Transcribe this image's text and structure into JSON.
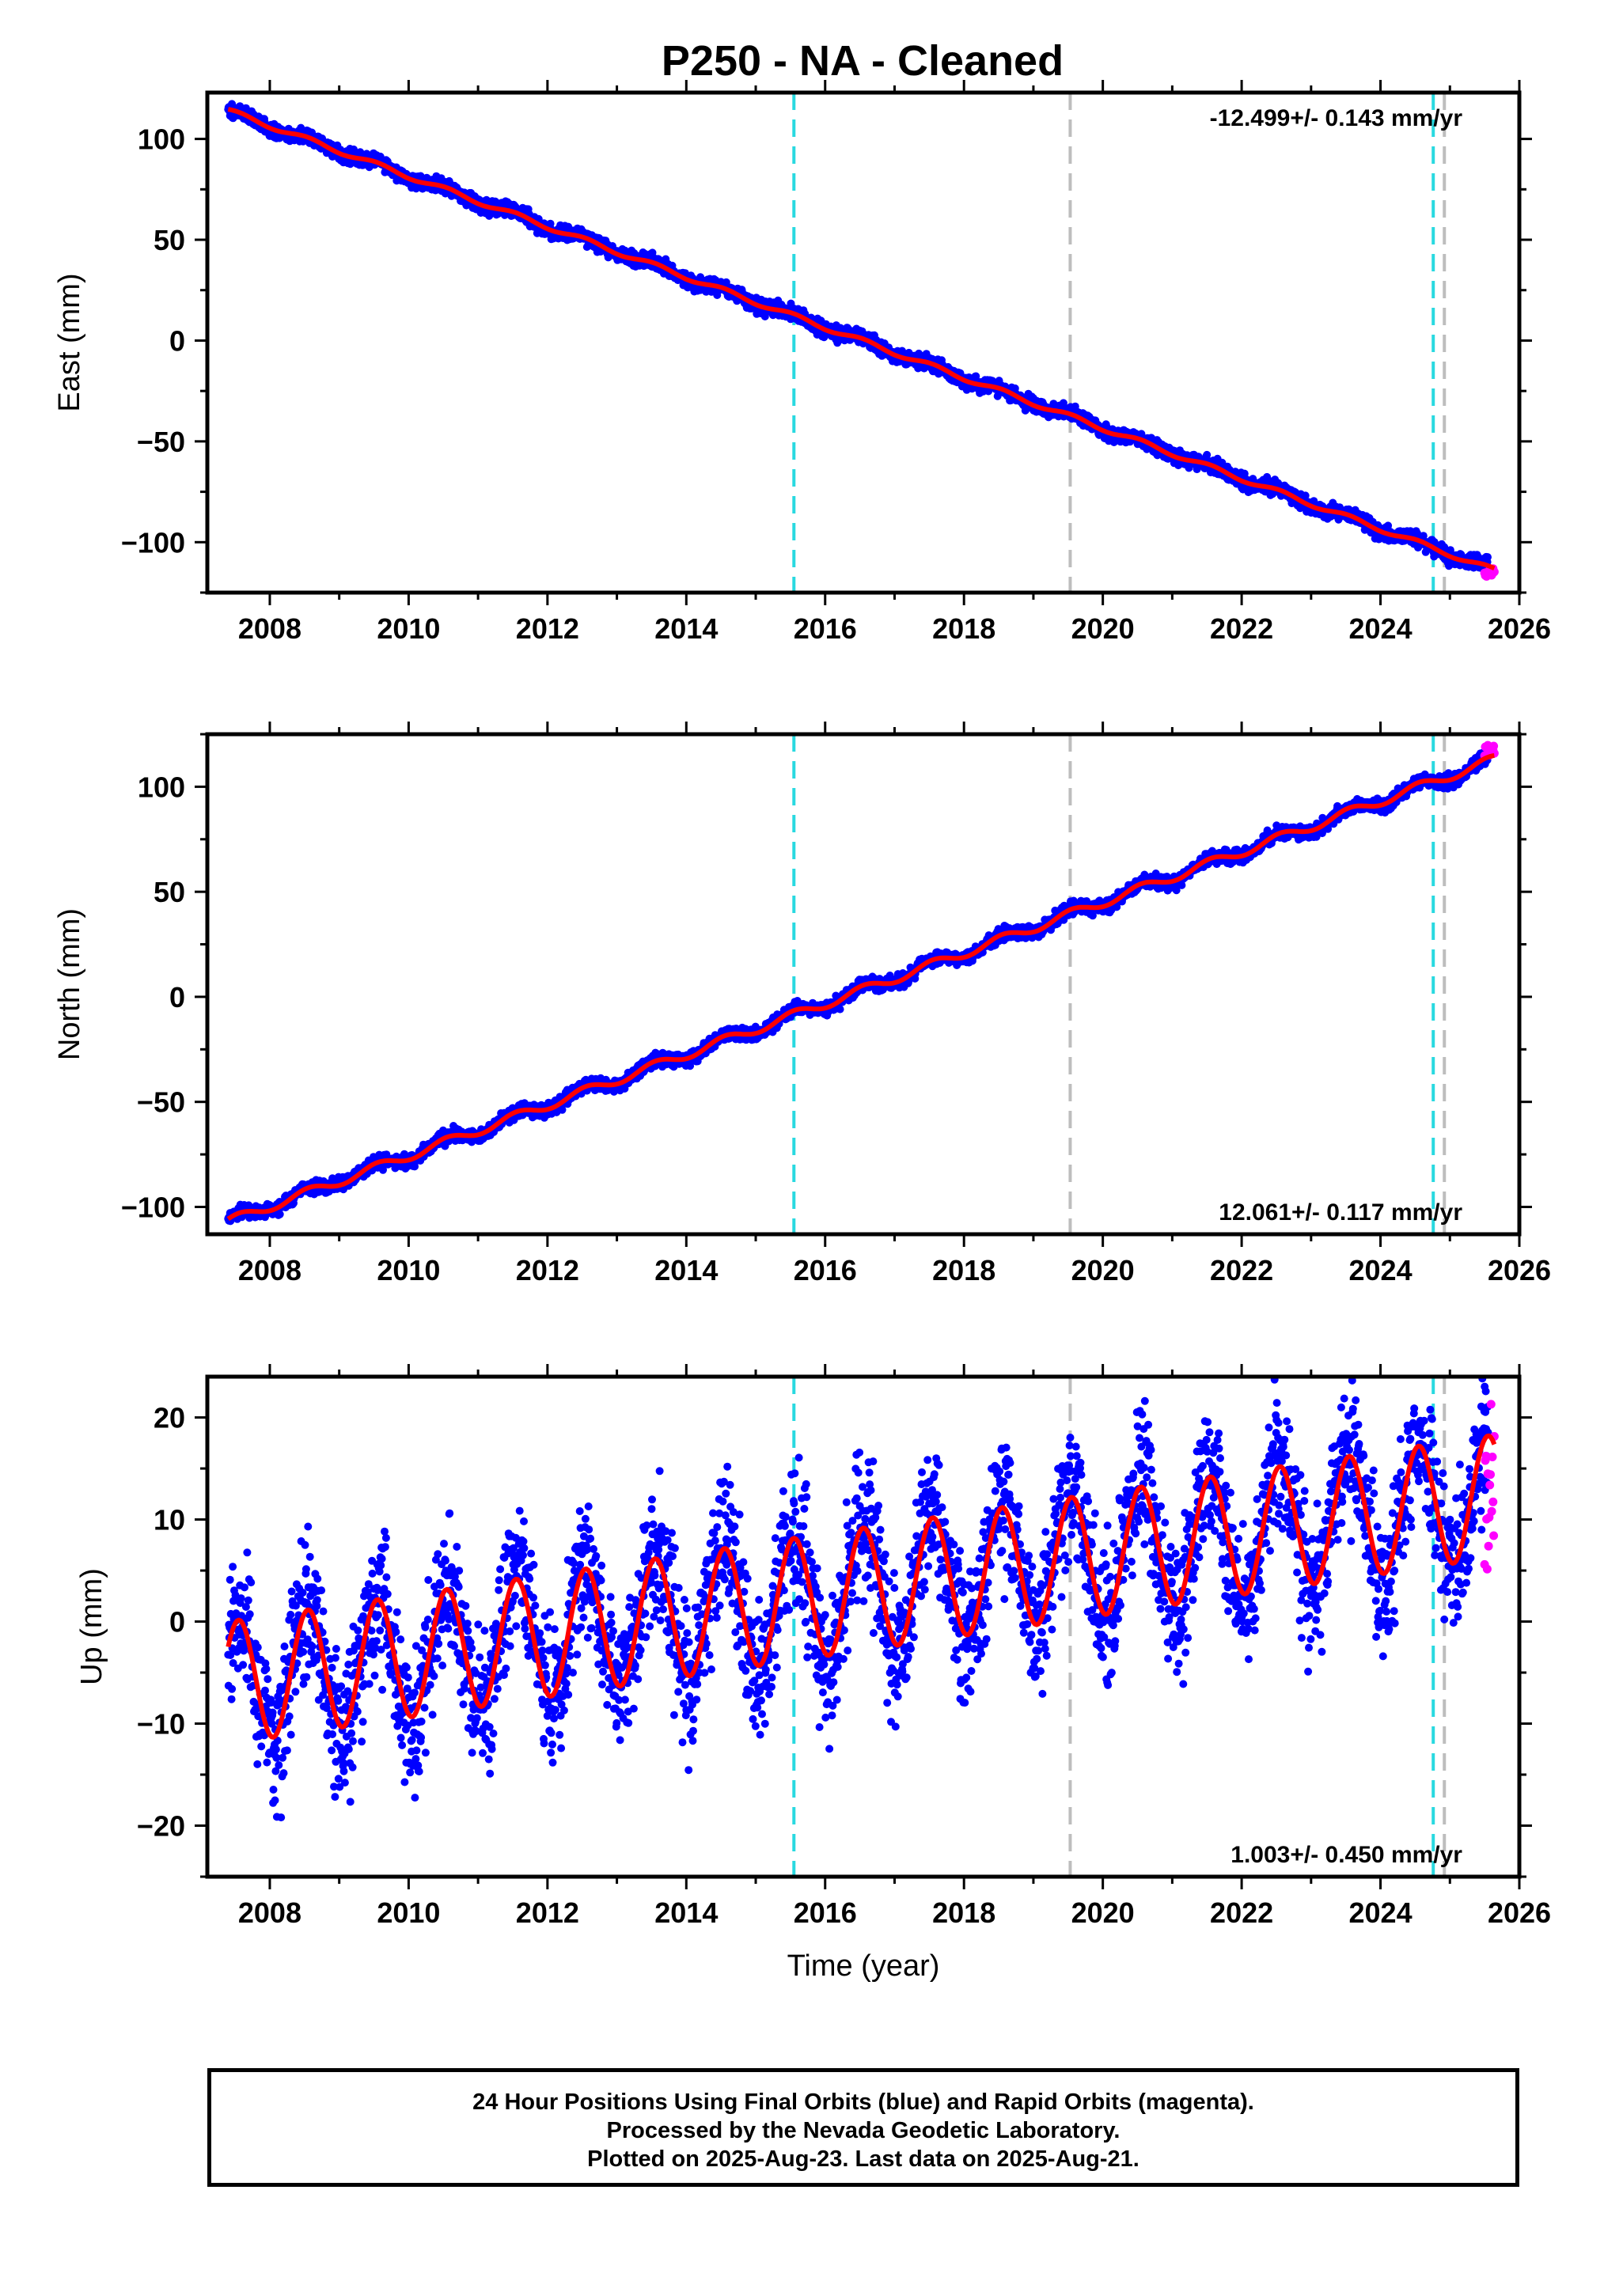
{
  "title": "P250  - NA - Cleaned",
  "chart_data": [
    {
      "type": "scatter",
      "ylabel": "East (mm)",
      "xlabel": "",
      "xlim": [
        2007.1,
        2026.0
      ],
      "ylim": [
        -125,
        123
      ],
      "xticks": [
        "2008",
        "2010",
        "2012",
        "2014",
        "2016",
        "2018",
        "2020",
        "2022",
        "2024",
        "2026"
      ],
      "yticks": [
        "100",
        "50",
        "0",
        "−50",
        "−100"
      ],
      "ytick_values": [
        100,
        50,
        0,
        -50,
        -100
      ],
      "rate_label": "-12.499+/- 0.143 mm/yr",
      "rate_position": "top-right",
      "final_orbits": {
        "start": 2007.4,
        "end": 2025.55,
        "intercept": 114,
        "slope": -12.499,
        "seasonal_amp": 1.5,
        "noise": 2.2
      },
      "rapid_orbits": {
        "start": 2025.5,
        "end": 2025.64,
        "values": [
          -117,
          -113
        ]
      },
      "model_fit": {
        "start": 2007.4,
        "end": 2025.64,
        "intercept": 114,
        "slope": -12.499,
        "seasonal_amp": 1.2
      },
      "vertical_lines": [
        {
          "x": 2015.55,
          "color": "#29d9e0"
        },
        {
          "x": 2019.53,
          "color": "#bdbdbd"
        },
        {
          "x": 2024.76,
          "color": "#29d9e0"
        },
        {
          "x": 2024.92,
          "color": "#bdbdbd"
        }
      ]
    },
    {
      "type": "scatter",
      "ylabel": "North (mm)",
      "xlabel": "",
      "xlim": [
        2007.1,
        2026.0
      ],
      "ylim": [
        -113,
        125
      ],
      "xticks": [
        "2008",
        "2010",
        "2012",
        "2014",
        "2016",
        "2018",
        "2020",
        "2022",
        "2024",
        "2026"
      ],
      "yticks": [
        "100",
        "50",
        "0",
        "−50",
        "−100"
      ],
      "ytick_values": [
        100,
        50,
        0,
        -50,
        -100
      ],
      "rate_label": "12.061+/- 0.117 mm/yr",
      "rate_position": "bottom-right",
      "final_orbits": {
        "start": 2007.4,
        "end": 2025.55,
        "intercept": -107,
        "slope": 12.061,
        "seasonal_amp": 2.5,
        "noise": 2.0
      },
      "rapid_orbits": {
        "start": 2025.5,
        "end": 2025.64,
        "values": [
          114,
          120
        ]
      },
      "model_fit": {
        "start": 2007.4,
        "end": 2025.64,
        "intercept": -107,
        "slope": 12.061,
        "seasonal_amp": 2.2
      },
      "vertical_lines": [
        {
          "x": 2015.55,
          "color": "#29d9e0"
        },
        {
          "x": 2019.53,
          "color": "#bdbdbd"
        },
        {
          "x": 2024.76,
          "color": "#29d9e0"
        },
        {
          "x": 2024.92,
          "color": "#bdbdbd"
        }
      ]
    },
    {
      "type": "scatter",
      "ylabel": "Up (mm)",
      "xlabel": "Time (year)",
      "xlim": [
        2007.1,
        2026.0
      ],
      "ylim": [
        -25,
        24
      ],
      "xticks": [
        "2008",
        "2010",
        "2012",
        "2014",
        "2016",
        "2018",
        "2020",
        "2022",
        "2024",
        "2026"
      ],
      "yticks": [
        "20",
        "10",
        "0",
        "−10",
        "−20"
      ],
      "ytick_values": [
        20,
        10,
        0,
        -10,
        -20
      ],
      "rate_label": "1.003+/- 0.450 mm/yr",
      "rate_position": "bottom-right",
      "final_orbits": {
        "start": 2007.4,
        "end": 2025.55,
        "intercept": -6,
        "slope": 1.003,
        "seasonal_amp": 6.5,
        "noise": 4.2
      },
      "rapid_orbits": {
        "start": 2025.5,
        "end": 2025.64,
        "values": [
          5,
          22
        ]
      },
      "model_fit": {
        "start": 2007.4,
        "end": 2025.64,
        "intercept": -6,
        "slope": 1.003,
        "seasonal_amp": 6.0
      },
      "vertical_lines": [
        {
          "x": 2015.55,
          "color": "#29d9e0"
        },
        {
          "x": 2019.53,
          "color": "#bdbdbd"
        },
        {
          "x": 2024.76,
          "color": "#29d9e0"
        },
        {
          "x": 2024.92,
          "color": "#bdbdbd"
        }
      ]
    }
  ],
  "colors": {
    "final_orbits": "#0000ff",
    "rapid_orbits": "#ff00ff",
    "model_fit": "#ff0000"
  },
  "footer": {
    "line1": "24 Hour Positions Using Final Orbits (blue) and Rapid Orbits (magenta).",
    "line2": "Processed by the Nevada Geodetic Laboratory.",
    "line3": "Plotted on 2025-Aug-23. Last data on 2025-Aug-21."
  }
}
